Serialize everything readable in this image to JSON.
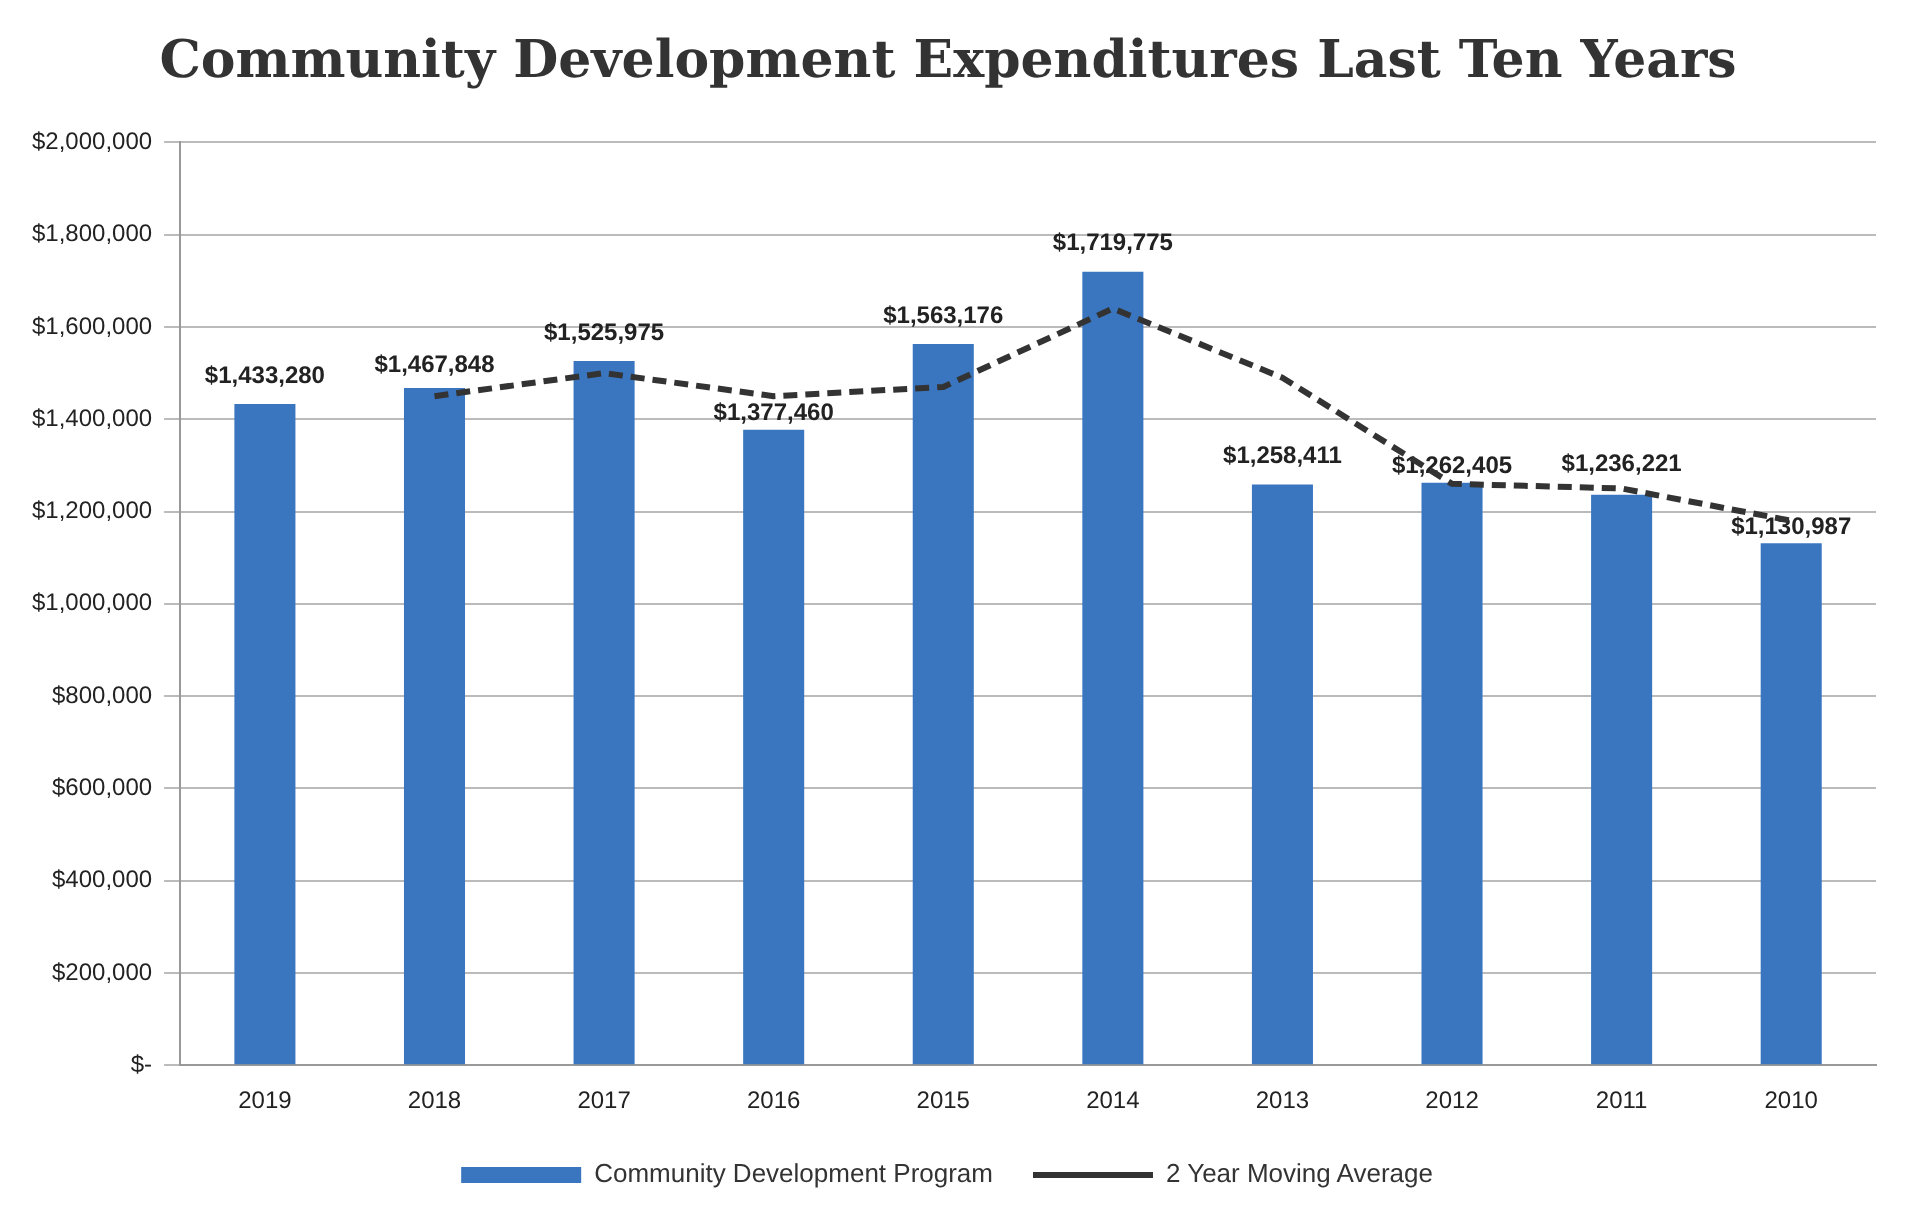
{
  "chart_data": {
    "type": "bar",
    "title": "Community Development Expenditures Last Ten Years",
    "categories": [
      "2019",
      "2018",
      "2017",
      "2016",
      "2015",
      "2014",
      "2013",
      "2012",
      "2011",
      "2010"
    ],
    "series": [
      {
        "name": "Community Development Program",
        "color": "#3a76c0",
        "values": [
          1433280,
          1467848,
          1525975,
          1377460,
          1563176,
          1719775,
          1258411,
          1262405,
          1236221,
          1130987
        ],
        "value_labels": [
          "$1,433,280",
          "$1,467,848",
          "$1,525,975",
          "$1,377,460",
          "$1,563,176",
          "$1,719,775",
          "$1,258,411",
          "$1,262,405",
          "$1,236,221",
          "$1,130,987"
        ]
      },
      {
        "name": "2 Year Moving Average",
        "type": "line",
        "color": "#333333",
        "line_style": "dashed",
        "marker": "none",
        "values": [
          null,
          1450000,
          1500000,
          1450000,
          1470000,
          1640000,
          1490000,
          1260000,
          1250000,
          1180000
        ]
      }
    ],
    "ylim": [
      0,
      2000000
    ],
    "yticks": [
      {
        "value": 0,
        "label": "$-"
      },
      {
        "value": 200000,
        "label": "$200,000"
      },
      {
        "value": 400000,
        "label": "$400,000"
      },
      {
        "value": 600000,
        "label": "$600,000"
      },
      {
        "value": 800000,
        "label": "$800,000"
      },
      {
        "value": 1000000,
        "label": "$1,000,000"
      },
      {
        "value": 1200000,
        "label": "$1,200,000"
      },
      {
        "value": 1400000,
        "label": "$1,400,000"
      },
      {
        "value": 1600000,
        "label": "$1,600,000"
      },
      {
        "value": 1800000,
        "label": "$1,800,000"
      },
      {
        "value": 2000000,
        "label": "$2,000,000"
      }
    ],
    "grid": "y",
    "legend": "bottom"
  }
}
